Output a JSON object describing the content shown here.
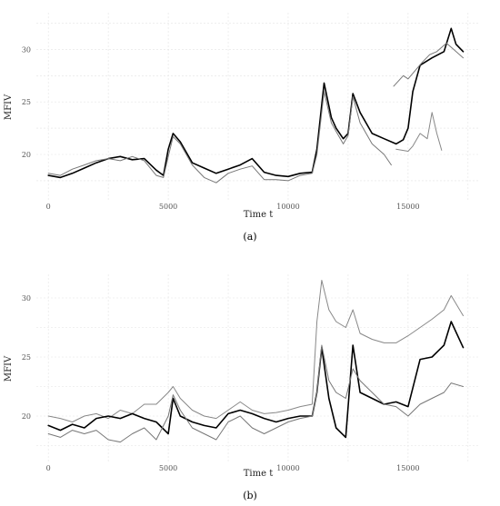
{
  "chart_data": [
    {
      "type": "line",
      "panel_label": "(a)",
      "panel_letter": "a",
      "xlabel": "Time t",
      "ylabel": "MFIV",
      "xlim": [
        -500,
        18000
      ],
      "ylim": [
        15.5,
        33.5
      ],
      "xticks": [
        0,
        5000,
        10000,
        15000
      ],
      "yticks": [
        20,
        25,
        30
      ],
      "grid": true,
      "series": [
        {
          "color": "#000000",
          "width": 1.6,
          "x": [
            0,
            500,
            1000,
            1500,
            2000,
            2500,
            3000,
            3500,
            4000,
            4500,
            4800,
            5000,
            5200,
            5500,
            6000,
            6500,
            7000,
            7500,
            8000,
            8500,
            9000,
            9500,
            10000,
            10500,
            11000,
            11200,
            11500,
            11800,
            12000,
            12300,
            12500,
            12700,
            13000,
            13500,
            14000,
            14500,
            14800,
            15000,
            15200,
            15500,
            16000,
            16500,
            16800,
            17000,
            17300
          ],
          "y": [
            18.0,
            17.8,
            18.2,
            18.7,
            19.2,
            19.6,
            19.8,
            19.5,
            19.6,
            18.5,
            18.0,
            20.5,
            22.0,
            21.2,
            19.2,
            18.7,
            18.2,
            18.6,
            19.0,
            19.6,
            18.3,
            18.0,
            17.9,
            18.2,
            18.3,
            20.5,
            26.8,
            23.5,
            22.5,
            21.5,
            22.0,
            25.8,
            24.0,
            22.0,
            21.5,
            21.0,
            21.4,
            22.5,
            26.0,
            28.5,
            29.2,
            29.8,
            32.0,
            30.5,
            29.8
          ]
        },
        {
          "color": "#777777",
          "width": 1.0,
          "x": [
            0,
            500,
            1000,
            1500,
            2000,
            2500,
            3000,
            3500,
            4000,
            4500,
            4800,
            5000,
            5200,
            5500,
            6000,
            6500,
            7000,
            7500,
            8000,
            8500,
            9000,
            9500,
            10000,
            10500,
            11000,
            11200,
            11500,
            11800,
            12000,
            12300,
            12500,
            12700,
            13000,
            13500,
            14000,
            14300
          ],
          "y": [
            18.2,
            18.0,
            18.6,
            19.0,
            19.4,
            19.6,
            19.4,
            19.8,
            19.4,
            18.0,
            17.8,
            19.8,
            21.7,
            21.0,
            19.0,
            17.8,
            17.3,
            18.2,
            18.6,
            18.9,
            17.6,
            17.6,
            17.5,
            18.0,
            18.2,
            20.0,
            26.0,
            23.0,
            22.2,
            21.0,
            21.8,
            25.5,
            23.0,
            21.0,
            20.0,
            19.0
          ]
        },
        {
          "color": "#888888",
          "width": 1.0,
          "x": [
            14500,
            15000,
            15200,
            15500,
            15800,
            16000,
            16200,
            16400
          ],
          "y": [
            20.5,
            20.3,
            20.8,
            22.0,
            21.5,
            24.0,
            22.0,
            20.4
          ]
        },
        {
          "color": "#777777",
          "width": 1.0,
          "x": [
            14400,
            14800,
            15000,
            15300,
            15600,
            15900,
            16200,
            16600,
            16900,
            17300
          ],
          "y": [
            26.5,
            27.5,
            27.2,
            28.0,
            28.8,
            29.5,
            29.8,
            30.6,
            30.0,
            29.2
          ]
        }
      ]
    },
    {
      "type": "line",
      "panel_label": "(b)",
      "panel_letter": "b",
      "xlabel": "Time t",
      "ylabel": "MFIV",
      "xlim": [
        -500,
        18000
      ],
      "ylim": [
        16.0,
        32.0
      ],
      "xticks": [
        0,
        5000,
        10000,
        15000
      ],
      "yticks": [
        20,
        25,
        30
      ],
      "grid": true,
      "series": [
        {
          "color": "#888888",
          "width": 1.0,
          "x": [
            0,
            500,
            1000,
            1500,
            2000,
            2500,
            3000,
            3500,
            4000,
            4500,
            5000,
            5200,
            5500,
            6000,
            6500,
            7000,
            7500,
            8000,
            8500,
            9000,
            9500,
            10000,
            10500,
            11000,
            11200,
            11400,
            11700,
            12000,
            12400,
            12700,
            13000,
            13500,
            14000,
            14500,
            15000,
            15500,
            16000,
            16500,
            16800,
            17300
          ],
          "y": [
            20.0,
            19.8,
            19.5,
            20.0,
            20.2,
            19.8,
            20.5,
            20.2,
            21.0,
            21.0,
            22.0,
            22.5,
            21.5,
            20.5,
            20.0,
            19.8,
            20.5,
            21.2,
            20.5,
            20.2,
            20.3,
            20.5,
            20.8,
            21.0,
            28.0,
            31.5,
            29.0,
            28.0,
            27.5,
            29.0,
            27.0,
            26.5,
            26.2,
            26.2,
            26.8,
            27.5,
            28.2,
            29.0,
            30.2,
            28.5
          ]
        },
        {
          "color": "#000000",
          "width": 1.6,
          "x": [
            0,
            500,
            1000,
            1500,
            2000,
            2500,
            3000,
            3500,
            4000,
            4500,
            5000,
            5200,
            5500,
            6000,
            6500,
            7000,
            7500,
            8000,
            8500,
            9000,
            9500,
            10000,
            10500,
            11000,
            11200,
            11400,
            11700,
            12000,
            12400,
            12700,
            13000,
            13500,
            14000,
            14500,
            15000,
            15500,
            16000,
            16500,
            16800,
            17300
          ],
          "y": [
            19.2,
            18.8,
            19.3,
            19.0,
            19.8,
            20.0,
            19.8,
            20.2,
            19.8,
            19.5,
            18.5,
            21.5,
            20.0,
            19.5,
            19.2,
            19.0,
            20.2,
            20.5,
            20.2,
            19.8,
            19.5,
            19.8,
            20.0,
            20.0,
            22.0,
            25.8,
            21.5,
            19.0,
            18.2,
            26.0,
            22.0,
            21.5,
            21.0,
            21.2,
            20.8,
            24.8,
            25.0,
            26.0,
            28.0,
            25.8
          ]
        },
        {
          "color": "#777777",
          "width": 1.0,
          "x": [
            0,
            500,
            1000,
            1500,
            2000,
            2500,
            3000,
            3500,
            4000,
            4500,
            5000,
            5200,
            5500,
            6000,
            6500,
            7000,
            7500,
            8000,
            8500,
            9000,
            9500,
            10000,
            10500,
            11000,
            11200,
            11400,
            11700,
            12000,
            12400,
            12700,
            13000,
            13500,
            14000,
            14500,
            15000,
            15500,
            16000,
            16500,
            16800,
            17300
          ],
          "y": [
            18.5,
            18.2,
            18.8,
            18.5,
            18.8,
            18.0,
            17.8,
            18.5,
            19.0,
            18.0,
            20.0,
            21.8,
            20.5,
            19.0,
            18.5,
            18.0,
            19.5,
            20.0,
            19.0,
            18.5,
            19.0,
            19.5,
            19.8,
            20.0,
            22.0,
            26.0,
            23.0,
            22.0,
            21.5,
            24.0,
            23.0,
            22.0,
            21.0,
            20.8,
            20.0,
            21.0,
            21.5,
            22.0,
            22.8,
            22.5
          ]
        }
      ]
    }
  ]
}
